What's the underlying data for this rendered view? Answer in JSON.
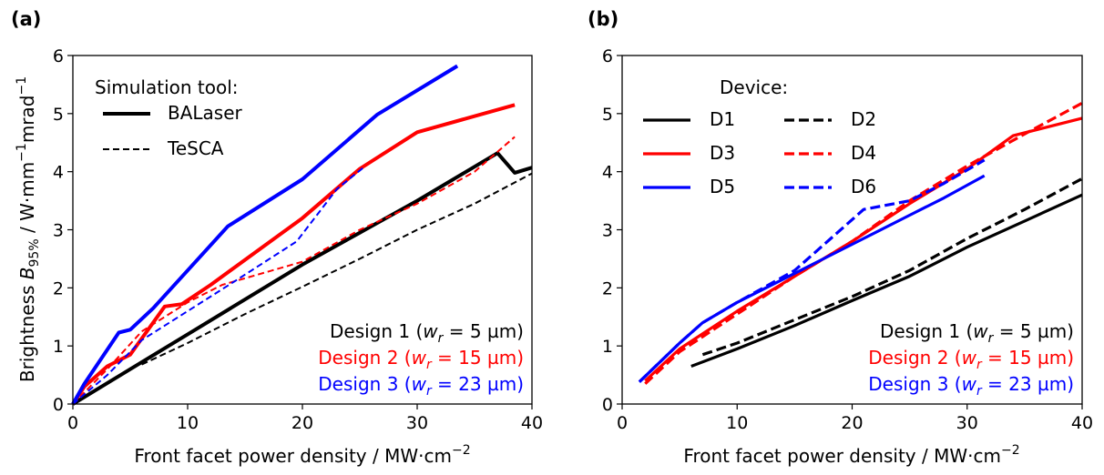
{
  "colors": {
    "design1": "#000000",
    "design2": "#ff0000",
    "design3": "#0000ff"
  },
  "xlabel_text": "Front facet power density / MW·cm",
  "xlabel_sup": "−2",
  "ylabel_pre": "Brightness ",
  "ylabel_var": "B",
  "ylabel_sub": "95%",
  "ylabel_unit": " / W·mm",
  "ylabel_sup1": "−1",
  "ylabel_mid": "mrad",
  "ylabel_sup2": "−1",
  "design_labels": [
    {
      "pre": "Design 1 (",
      "var": "w",
      "sub": "r",
      "post": " =   5 µm)",
      "color": "#000000"
    },
    {
      "pre": "Design 2 (",
      "var": "w",
      "sub": "r",
      "post": " = 15 µm)",
      "color": "#ff0000"
    },
    {
      "pre": "Design 3 (",
      "var": "w",
      "sub": "r",
      "post": " = 23 µm)",
      "color": "#0000ff"
    }
  ],
  "chart_data": [
    {
      "panel_label": "(a)",
      "type": "line",
      "xlim": [
        0,
        40
      ],
      "ylim": [
        0,
        6
      ],
      "xticks": [
        0,
        10,
        20,
        30,
        40
      ],
      "yticks": [
        0,
        1,
        2,
        3,
        4,
        5,
        6
      ],
      "legend": {
        "title": "Simulation tool:",
        "entries": [
          {
            "label": "BALaser",
            "style": "solid"
          },
          {
            "label": "TeSCA",
            "style": "dashed"
          }
        ]
      },
      "series": [
        {
          "design": 1,
          "tool": "BALaser",
          "color": "#000000",
          "style": "solid",
          "points": [
            [
              0,
              0
            ],
            [
              5,
              0.6
            ],
            [
              10,
              1.2
            ],
            [
              15,
              1.8
            ],
            [
              20,
              2.4
            ],
            [
              25,
              2.95
            ],
            [
              30,
              3.5
            ],
            [
              37,
              4.32
            ],
            [
              38.5,
              3.98
            ],
            [
              40,
              4.07
            ]
          ]
        },
        {
          "design": 1,
          "tool": "TeSCA",
          "color": "#000000",
          "style": "dashed",
          "points": [
            [
              6,
              0.68
            ],
            [
              10,
              1.05
            ],
            [
              15,
              1.55
            ],
            [
              20,
              2.02
            ],
            [
              25,
              2.5
            ],
            [
              30,
              3.0
            ],
            [
              35,
              3.45
            ],
            [
              40,
              3.97
            ]
          ]
        },
        {
          "design": 2,
          "tool": "BALaser",
          "color": "#ff0000",
          "style": "solid",
          "points": [
            [
              0,
              0
            ],
            [
              1,
              0.3
            ],
            [
              3,
              0.65
            ],
            [
              5,
              0.85
            ],
            [
              8,
              1.68
            ],
            [
              9.5,
              1.72
            ],
            [
              12,
              2.05
            ],
            [
              20,
              3.2
            ],
            [
              25,
              4.05
            ],
            [
              30,
              4.68
            ],
            [
              38.5,
              5.15
            ]
          ]
        },
        {
          "design": 2,
          "tool": "TeSCA",
          "color": "#ff0000",
          "style": "dashed",
          "points": [
            [
              0,
              0
            ],
            [
              3,
              0.6
            ],
            [
              6,
              1.25
            ],
            [
              10,
              1.75
            ],
            [
              13,
              2.05
            ],
            [
              20,
              2.45
            ],
            [
              25,
              3.0
            ],
            [
              30,
              3.45
            ],
            [
              35,
              4.0
            ],
            [
              38.5,
              4.6
            ]
          ]
        },
        {
          "design": 3,
          "tool": "BALaser",
          "color": "#0000ff",
          "style": "solid",
          "points": [
            [
              0,
              0
            ],
            [
              1,
              0.35
            ],
            [
              4,
              1.23
            ],
            [
              5,
              1.28
            ],
            [
              7,
              1.65
            ],
            [
              10,
              2.3
            ],
            [
              13.5,
              3.06
            ],
            [
              20,
              3.87
            ],
            [
              26.5,
              4.98
            ],
            [
              33.5,
              5.82
            ]
          ]
        },
        {
          "design": 3,
          "tool": "TeSCA",
          "color": "#0000ff",
          "style": "dashed",
          "points": [
            [
              0,
              0
            ],
            [
              3,
              0.5
            ],
            [
              6,
              1.1
            ],
            [
              10,
              1.6
            ],
            [
              14,
              2.1
            ],
            [
              19.5,
              2.8
            ],
            [
              23,
              3.7
            ],
            [
              25.5,
              4.1
            ]
          ]
        }
      ]
    },
    {
      "panel_label": "(b)",
      "type": "line",
      "xlim": [
        0,
        40
      ],
      "ylim": [
        0,
        6
      ],
      "xticks": [
        0,
        10,
        20,
        30,
        40
      ],
      "yticks": [
        0,
        1,
        2,
        3,
        4,
        5,
        6
      ],
      "legend": {
        "title": "Device:",
        "entries": [
          {
            "label": "D1",
            "color": "#000000",
            "style": "solid"
          },
          {
            "label": "D2",
            "color": "#000000",
            "style": "dashed"
          },
          {
            "label": "D3",
            "color": "#ff0000",
            "style": "solid"
          },
          {
            "label": "D4",
            "color": "#ff0000",
            "style": "dashed"
          },
          {
            "label": "D5",
            "color": "#0000ff",
            "style": "solid"
          },
          {
            "label": "D6",
            "color": "#0000ff",
            "style": "dashed"
          }
        ]
      },
      "series": [
        {
          "name": "D1",
          "color": "#000000",
          "style": "solid",
          "points": [
            [
              6,
              0.65
            ],
            [
              10,
              0.95
            ],
            [
              15,
              1.35
            ],
            [
              20,
              1.78
            ],
            [
              25,
              2.2
            ],
            [
              30,
              2.7
            ],
            [
              35,
              3.15
            ],
            [
              40,
              3.6
            ]
          ]
        },
        {
          "name": "D2",
          "color": "#000000",
          "style": "dashed",
          "points": [
            [
              7,
              0.85
            ],
            [
              10,
              1.05
            ],
            [
              15,
              1.45
            ],
            [
              20,
              1.85
            ],
            [
              25,
              2.3
            ],
            [
              30,
              2.85
            ],
            [
              35,
              3.35
            ],
            [
              40,
              3.88
            ]
          ]
        },
        {
          "name": "D3",
          "color": "#ff0000",
          "style": "solid",
          "points": [
            [
              2,
              0.4
            ],
            [
              5,
              0.95
            ],
            [
              10,
              1.6
            ],
            [
              15,
              2.2
            ],
            [
              20,
              2.8
            ],
            [
              25,
              3.45
            ],
            [
              30,
              4.05
            ],
            [
              34,
              4.62
            ],
            [
              40,
              4.92
            ]
          ]
        },
        {
          "name": "D4",
          "color": "#ff0000",
          "style": "dashed",
          "points": [
            [
              2,
              0.35
            ],
            [
              5,
              0.9
            ],
            [
              10,
              1.55
            ],
            [
              15,
              2.2
            ],
            [
              20,
              2.8
            ],
            [
              25,
              3.5
            ],
            [
              30,
              4.1
            ],
            [
              35,
              4.65
            ],
            [
              40,
              5.18
            ]
          ]
        },
        {
          "name": "D5",
          "color": "#0000ff",
          "style": "solid",
          "points": [
            [
              1.5,
              0.38
            ],
            [
              5,
              1.05
            ],
            [
              7,
              1.4
            ],
            [
              10,
              1.75
            ],
            [
              15,
              2.25
            ],
            [
              20,
              2.75
            ],
            [
              25,
              3.25
            ],
            [
              28,
              3.55
            ],
            [
              31.5,
              3.93
            ]
          ]
        },
        {
          "name": "D6",
          "color": "#0000ff",
          "style": "dashed",
          "points": [
            [
              1.5,
              0.38
            ],
            [
              5,
              1.05
            ],
            [
              7,
              1.4
            ],
            [
              10,
              1.75
            ],
            [
              15,
              2.3
            ],
            [
              21,
              3.35
            ],
            [
              25,
              3.5
            ],
            [
              28,
              3.8
            ],
            [
              31.5,
              4.2
            ]
          ]
        }
      ]
    }
  ]
}
